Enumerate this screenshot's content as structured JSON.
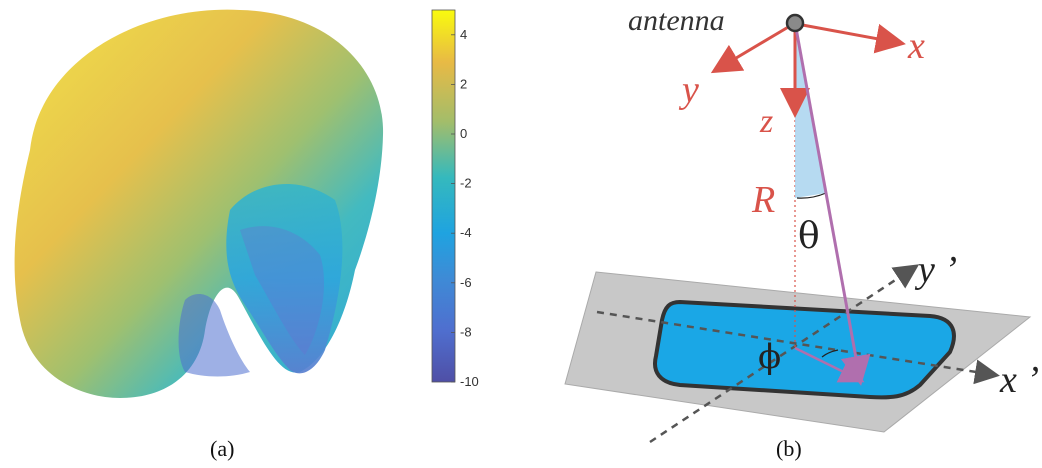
{
  "panel_a": {
    "caption": "(a)",
    "colorbar": {
      "ticks": [
        "4",
        "2",
        "0",
        "-2",
        "-4",
        "-6",
        "-8",
        "-10"
      ],
      "range": [
        -10,
        5
      ],
      "colormap": [
        "#f9fb0e",
        "#e8ba45",
        "#a3bd6a",
        "#35b9bd",
        "#1fa3e0",
        "#3e8bd6",
        "#4f6fcf",
        "#4f4fa6"
      ]
    }
  },
  "panel_b": {
    "caption": "(b)",
    "labels": {
      "antenna": "antenna",
      "x": "x",
      "y": "y",
      "z": "z",
      "R": "R",
      "theta": "θ",
      "phi": "ϕ",
      "x_prime": "x ’",
      "y_prime": "y ’"
    },
    "colors": {
      "axis_red": "#d9534a",
      "ray_purple": "#b06fae",
      "plane_gray": "#c8c8c8",
      "footprint_blue": "#1aa7e6",
      "theta_wedge": "#a9d4ef"
    }
  }
}
